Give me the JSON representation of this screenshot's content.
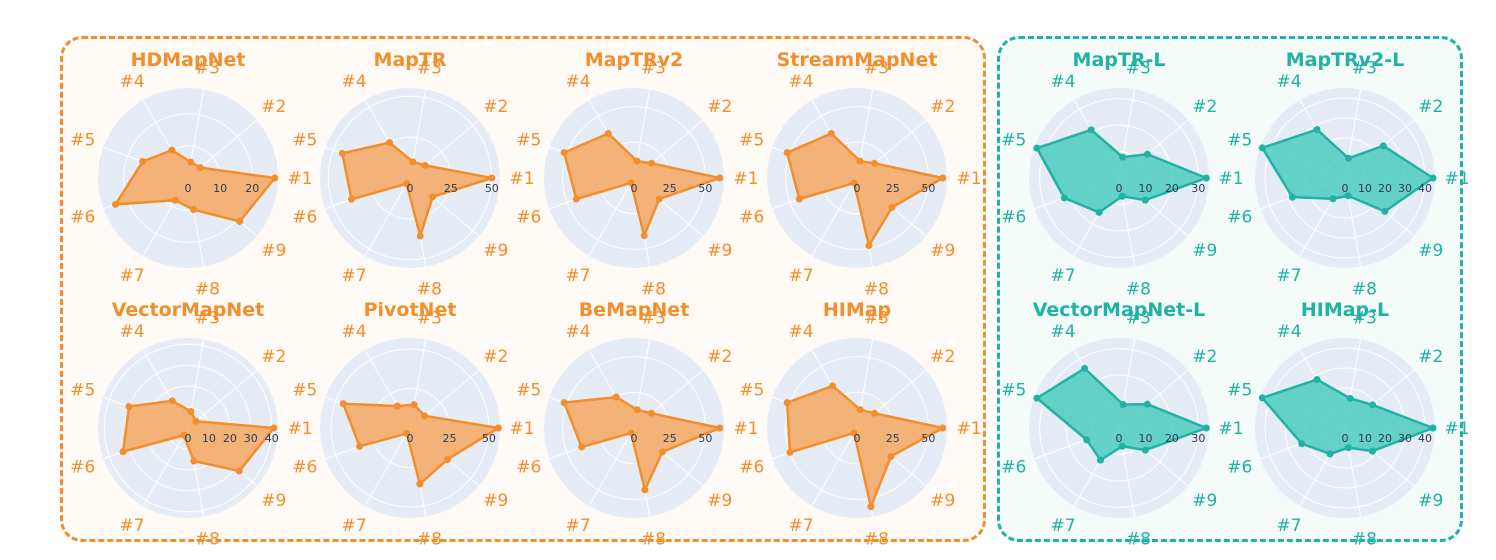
{
  "colors": {
    "orange": "#f28e2b",
    "orange_fill": "#f5a862",
    "teal": "#20b2a3",
    "teal_fill": "#4ecdc0",
    "polar_bg": "#e5ecf6"
  },
  "axis_labels": [
    "#1",
    "#2",
    "#3",
    "#4",
    "#5",
    "#6",
    "#7",
    "#8",
    "#9"
  ],
  "chart_data": [
    {
      "type": "radar",
      "title": "HDMapNet",
      "group": "orange",
      "rmax": 28,
      "ticks": [
        0,
        10,
        20
      ],
      "categories": [
        "#1",
        "#2",
        "#3",
        "#4",
        "#5",
        "#6",
        "#7",
        "#8",
        "#9"
      ],
      "values": [
        27,
        5,
        5,
        10,
        15,
        24,
        8,
        10,
        21
      ]
    },
    {
      "type": "radar",
      "title": "MapTR",
      "group": "orange",
      "rmax": 55,
      "ticks": [
        0,
        25,
        50
      ],
      "categories": [
        "#1",
        "#2",
        "#3",
        "#4",
        "#5",
        "#6",
        "#7",
        "#8",
        "#9"
      ],
      "values": [
        50,
        12,
        10,
        25,
        44,
        38,
        4,
        36,
        18
      ]
    },
    {
      "type": "radar",
      "title": "MapTRv2",
      "group": "orange",
      "rmax": 63,
      "ticks": [
        0,
        25,
        50
      ],
      "categories": [
        "#1",
        "#2",
        "#3",
        "#4",
        "#5",
        "#6",
        "#7",
        "#8",
        "#9"
      ],
      "values": [
        60,
        16,
        12,
        36,
        52,
        43,
        4,
        41,
        23
      ]
    },
    {
      "type": "radar",
      "title": "StreamMapNet",
      "group": "orange",
      "rmax": 63,
      "ticks": [
        0,
        25,
        50
      ],
      "categories": [
        "#1",
        "#2",
        "#3",
        "#4",
        "#5",
        "#6",
        "#7",
        "#8",
        "#9"
      ],
      "values": [
        60,
        16,
        12,
        36,
        52,
        43,
        4,
        48,
        32
      ]
    },
    {
      "type": "radar",
      "title": "VectorMapNet",
      "group": "orange",
      "rmax": 43,
      "ticks": [
        0,
        10,
        20,
        30,
        40
      ],
      "categories": [
        "#1",
        "#2",
        "#3",
        "#4",
        "#5",
        "#6",
        "#7",
        "#8",
        "#9"
      ],
      "values": [
        41,
        5,
        8,
        15,
        30,
        33,
        4,
        16,
        32
      ]
    },
    {
      "type": "radar",
      "title": "PivotNet",
      "group": "orange",
      "rmax": 57,
      "ticks": [
        0,
        25,
        50
      ],
      "categories": [
        "#1",
        "#2",
        "#3",
        "#4",
        "#5",
        "#6",
        "#7",
        "#8",
        "#9"
      ],
      "values": [
        56,
        12,
        15,
        16,
        45,
        34,
        4,
        36,
        31
      ]
    },
    {
      "type": "radar",
      "title": "BeMapNet",
      "group": "orange",
      "rmax": 63,
      "ticks": [
        0,
        25,
        50
      ],
      "categories": [
        "#1",
        "#2",
        "#3",
        "#4",
        "#5",
        "#6",
        "#7",
        "#8",
        "#9"
      ],
      "values": [
        60,
        16,
        13,
        25,
        52,
        39,
        4,
        44,
        26
      ]
    },
    {
      "type": "radar",
      "title": "HIMap",
      "group": "orange",
      "rmax": 63,
      "ticks": [
        0,
        25,
        50
      ],
      "categories": [
        "#1",
        "#2",
        "#3",
        "#4",
        "#5",
        "#6",
        "#7",
        "#8",
        "#9"
      ],
      "values": [
        60,
        16,
        13,
        34,
        52,
        50,
        4,
        56,
        31
      ]
    },
    {
      "type": "radar",
      "title": "MapTR-L",
      "group": "teal",
      "rmax": 34,
      "ticks": [
        0,
        10,
        20,
        30
      ],
      "categories": [
        "#1",
        "#2",
        "#3",
        "#4",
        "#5",
        "#6",
        "#7",
        "#8",
        "#9"
      ],
      "values": [
        33,
        14,
        8,
        21,
        33,
        22,
        15,
        7,
        13
      ]
    },
    {
      "type": "radar",
      "title": "MapTRv2-L",
      "group": "teal",
      "rmax": 45,
      "ticks": [
        0,
        10,
        20,
        30,
        40
      ],
      "categories": [
        "#1",
        "#2",
        "#3",
        "#4",
        "#5",
        "#6",
        "#7",
        "#8",
        "#9"
      ],
      "values": [
        44,
        25,
        10,
        28,
        44,
        28,
        12,
        9,
        26
      ]
    },
    {
      "type": "radar",
      "title": "VectorMapNet-L",
      "group": "teal",
      "rmax": 34,
      "ticks": [
        0,
        10,
        20,
        30
      ],
      "categories": [
        "#1",
        "#2",
        "#3",
        "#4",
        "#5",
        "#6",
        "#7",
        "#8",
        "#9"
      ],
      "values": [
        33,
        14,
        9,
        26,
        33,
        13,
        14,
        7,
        13
      ]
    },
    {
      "type": "radar",
      "title": "HIMap-L",
      "group": "teal",
      "rmax": 45,
      "ticks": [
        0,
        10,
        20,
        30,
        40
      ],
      "categories": [
        "#1",
        "#2",
        "#3",
        "#4",
        "#5",
        "#6",
        "#7",
        "#8",
        "#9"
      ],
      "values": [
        44,
        18,
        15,
        28,
        44,
        23,
        15,
        10,
        18
      ]
    }
  ]
}
